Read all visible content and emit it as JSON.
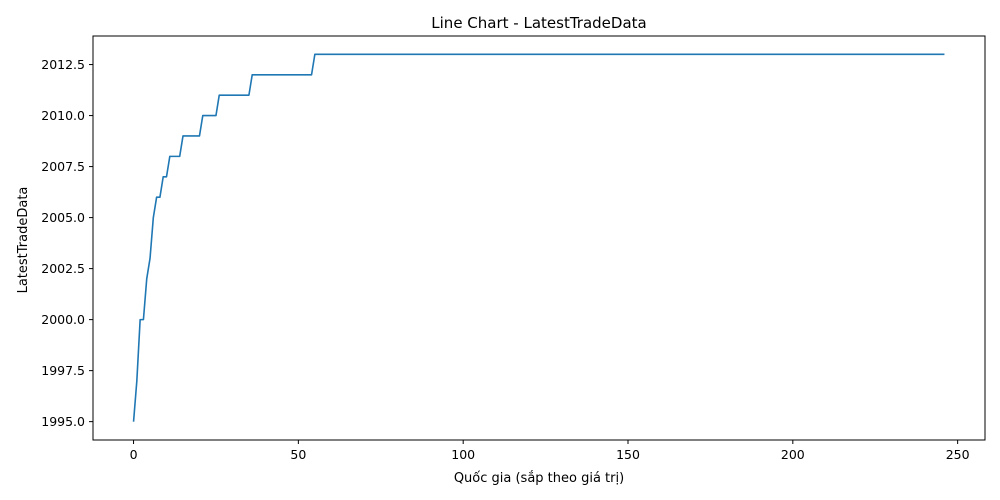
{
  "chart_data": {
    "type": "line",
    "title": "Line Chart - LatestTradeData",
    "xlabel": "Quốc gia (sắp theo giá trị)",
    "ylabel": "LatestTradeData",
    "xlim": [
      -12.3,
      258.3
    ],
    "ylim": [
      1994.1,
      2013.9
    ],
    "x_ticks": [
      0,
      50,
      100,
      150,
      200,
      250
    ],
    "y_ticks": [
      1995.0,
      1997.5,
      2000.0,
      2002.5,
      2005.0,
      2007.5,
      2010.0,
      2012.5
    ],
    "x_tick_labels": [
      "0",
      "50",
      "100",
      "150",
      "200",
      "250"
    ],
    "y_tick_labels": [
      "1995.0",
      "1997.5",
      "2000.0",
      "2002.5",
      "2005.0",
      "2007.5",
      "2010.0",
      "2012.5"
    ],
    "grid": false,
    "line_color": "#1f77b4",
    "series": [
      {
        "x": [
          0,
          1,
          2,
          3,
          4,
          5,
          6,
          7,
          8,
          9,
          10,
          11,
          12,
          13,
          14,
          15,
          16,
          17,
          18,
          19,
          20,
          21,
          22,
          23,
          24,
          25,
          26,
          27,
          28,
          29,
          30,
          31,
          32,
          33,
          34,
          35,
          36,
          37,
          38,
          39,
          40,
          41,
          42,
          43,
          44,
          45,
          46,
          47,
          48,
          49,
          50,
          51,
          52,
          53,
          54,
          55,
          100,
          150,
          200,
          246
        ],
        "y": [
          1995,
          1997,
          2000,
          2000,
          2002,
          2003,
          2005,
          2006,
          2006,
          2007,
          2007,
          2008,
          2008,
          2008,
          2008,
          2009,
          2009,
          2009,
          2009,
          2009,
          2009,
          2010,
          2010,
          2010,
          2010,
          2010,
          2011,
          2011,
          2011,
          2011,
          2011,
          2011,
          2011,
          2011,
          2011,
          2011,
          2012,
          2012,
          2012,
          2012,
          2012,
          2012,
          2012,
          2012,
          2012,
          2012,
          2012,
          2012,
          2012,
          2012,
          2012,
          2012,
          2012,
          2012,
          2012,
          2013,
          2013,
          2013,
          2013,
          2013
        ]
      }
    ]
  }
}
